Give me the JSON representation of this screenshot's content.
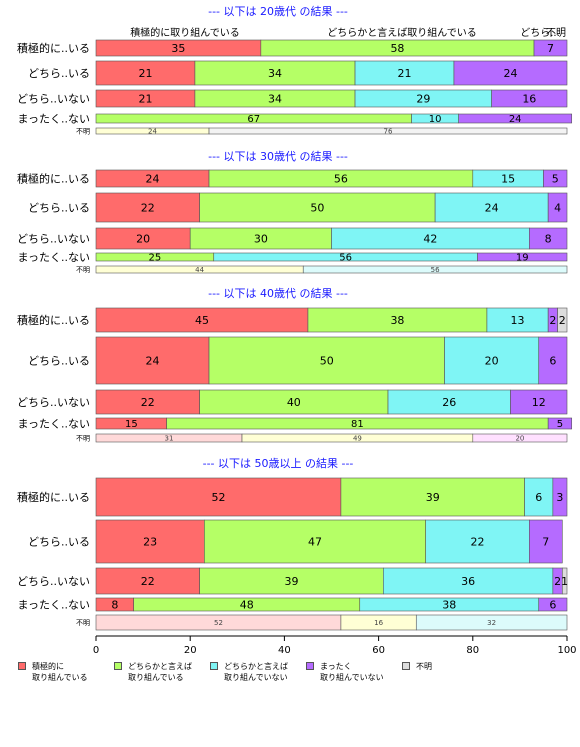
{
  "chart_data": {
    "type": "bar",
    "orientation": "horizontal",
    "stacked": true,
    "xlim": [
      0,
      100
    ],
    "x_ticks": [
      "0",
      "20",
      "40",
      "60",
      "80",
      "100"
    ],
    "colors": [
      "#ff6b6b",
      "#b5ff66",
      "#7ff5f5",
      "#b56bff",
      "#dddddd"
    ],
    "category_header": [
      "積極的に取り組んでいる",
      "どちらかと言えば取り組んでいる",
      "どちら...",
      "不明"
    ],
    "legend": [
      {
        "label": "積極的に\n取り組んでいる"
      },
      {
        "label": "どちらかと言えば\n取り組んでいる"
      },
      {
        "label": "どちらかと言えば\n取り組んでいない"
      },
      {
        "label": "まったく\n取り組んでいない"
      },
      {
        "label": "不明"
      }
    ],
    "panels": [
      {
        "title": "--- 以下は 20歳代 の結果 ---",
        "rows": [
          {
            "label": "積極的に..いる",
            "values": [
              35,
              58,
              0,
              7,
              0
            ],
            "labels": [
              "35",
              "58",
              "",
              "7",
              ""
            ]
          },
          {
            "label": "どちら..いる",
            "values": [
              21,
              34,
              21,
              24,
              0
            ],
            "labels": [
              "21",
              "34",
              "21",
              "24",
              ""
            ]
          },
          {
            "label": "どちら..いない",
            "values": [
              21,
              34,
              29,
              16,
              0
            ],
            "labels": [
              "21",
              "34",
              "29",
              "16",
              ""
            ]
          },
          {
            "label": "まったく..ない",
            "values": [
              0,
              67,
              10,
              24,
              0
            ],
            "labels": [
              "",
              "67",
              "10",
              "24",
              ""
            ]
          },
          {
            "label": "不明",
            "values": [
              0,
              24,
              0,
              0,
              76
            ],
            "labels": [
              "",
              "24",
              "",
              "",
              "76"
            ],
            "small": true,
            "pale": true
          }
        ]
      },
      {
        "title": "--- 以下は 30歳代 の結果 ---",
        "rows": [
          {
            "label": "積極的に..いる",
            "values": [
              24,
              56,
              15,
              5,
              0
            ],
            "labels": [
              "24",
              "56",
              "15",
              "5",
              ""
            ]
          },
          {
            "label": "どちら..いる",
            "values": [
              22,
              50,
              24,
              4,
              0
            ],
            "labels": [
              "22",
              "50",
              "24",
              "4",
              ""
            ]
          },
          {
            "label": "どちら..いない",
            "values": [
              20,
              30,
              42,
              8,
              0
            ],
            "labels": [
              "20",
              "30",
              "42",
              "8",
              ""
            ]
          },
          {
            "label": "まったく..ない",
            "values": [
              0,
              25,
              56,
              19,
              0
            ],
            "labels": [
              "",
              "25",
              "56",
              "19",
              ""
            ]
          },
          {
            "label": "不明",
            "values": [
              0,
              44,
              56,
              0,
              0
            ],
            "labels": [
              "",
              "44",
              "56",
              "",
              ""
            ],
            "small": true,
            "pale": true
          }
        ]
      },
      {
        "title": "--- 以下は 40歳代 の結果 ---",
        "rows": [
          {
            "label": "積極的に..いる",
            "values": [
              45,
              38,
              13,
              2,
              2
            ],
            "labels": [
              "45",
              "38",
              "13",
              "2",
              "2"
            ]
          },
          {
            "label": "どちら..いる",
            "values": [
              24,
              50,
              20,
              6,
              0
            ],
            "labels": [
              "24",
              "50",
              "20",
              "6",
              ""
            ]
          },
          {
            "label": "どちら..いない",
            "values": [
              22,
              40,
              26,
              12,
              0
            ],
            "labels": [
              "22",
              "40",
              "26",
              "12",
              ""
            ]
          },
          {
            "label": "まったく..ない",
            "values": [
              15,
              81,
              0,
              5,
              0
            ],
            "labels": [
              "15",
              "81",
              "",
              "5",
              ""
            ]
          },
          {
            "label": "不明",
            "values": [
              31,
              49,
              0,
              20,
              0
            ],
            "labels": [
              "31",
              "49",
              "",
              "20",
              ""
            ],
            "small": true,
            "pale": true
          }
        ]
      },
      {
        "title": "--- 以下は 50歳以上 の結果 ---",
        "rows": [
          {
            "label": "積極的に..いる",
            "values": [
              52,
              39,
              6,
              3,
              0
            ],
            "labels": [
              "52",
              "39",
              "6",
              "3",
              ""
            ]
          },
          {
            "label": "どちら..いる",
            "values": [
              23,
              47,
              22,
              7,
              0
            ],
            "labels": [
              "23",
              "47",
              "22",
              "7",
              ""
            ]
          },
          {
            "label": "どちら..いない",
            "values": [
              22,
              39,
              36,
              2,
              1
            ],
            "labels": [
              "22",
              "39",
              "36",
              "2",
              "1"
            ]
          },
          {
            "label": "まったく..ない",
            "values": [
              8,
              48,
              38,
              6,
              0
            ],
            "labels": [
              "8",
              "48",
              "38",
              "6",
              ""
            ]
          },
          {
            "label": "不明",
            "values": [
              52,
              16,
              32,
              0,
              0
            ],
            "labels": [
              "52",
              "16",
              "32",
              "",
              ""
            ],
            "small": true,
            "pale": true
          }
        ]
      }
    ]
  }
}
